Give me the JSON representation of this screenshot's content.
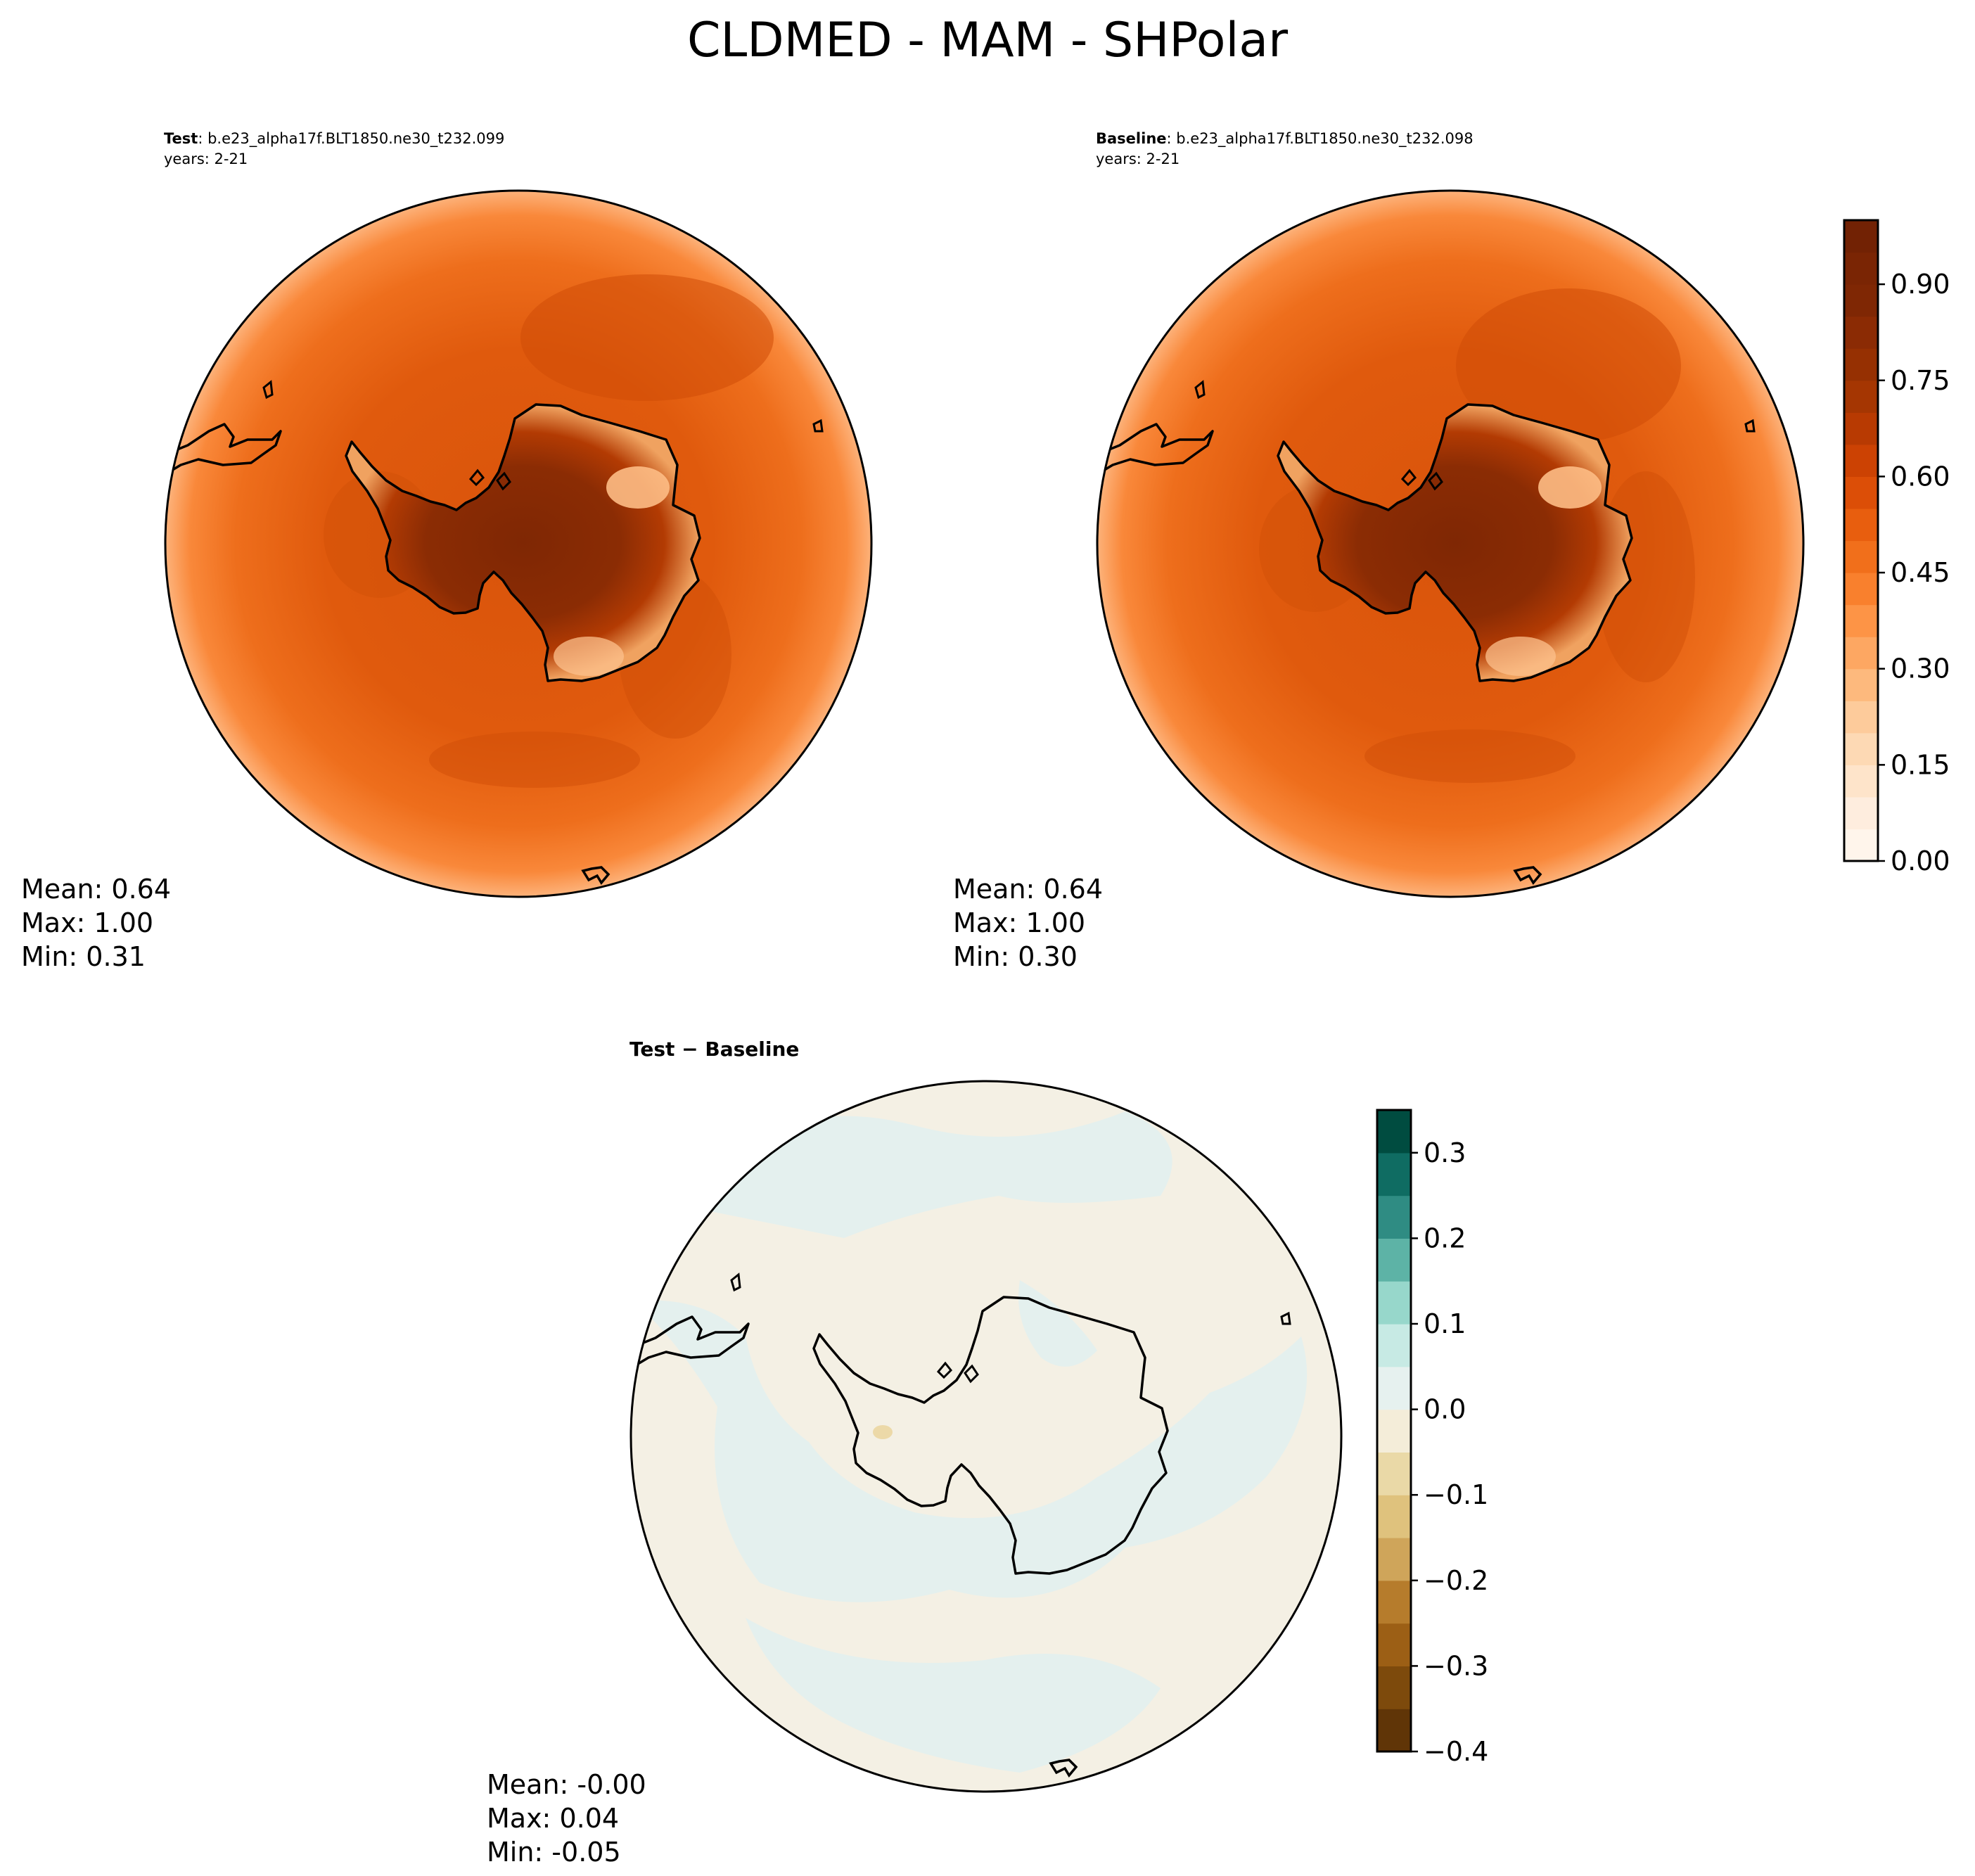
{
  "title": "CLDMED - MAM - SHPolar",
  "chart_data": [
    {
      "type": "heatmap",
      "projection": "south-polar-stereographic",
      "panel": "test",
      "title_bold": "Test",
      "title_rest": ": b.e23_alpha17f.BLT1850.ne30_t232.099",
      "subtitle": "years: 2-21",
      "stats": {
        "mean": "Mean:  0.64",
        "max": "Max:  1.00",
        "min": "Min:  0.31"
      }
    },
    {
      "type": "heatmap",
      "projection": "south-polar-stereographic",
      "panel": "baseline",
      "title_bold": "Baseline",
      "title_rest": ": b.e23_alpha17f.BLT1850.ne30_t232.098",
      "subtitle": "years: 2-21",
      "stats": {
        "mean": "Mean:  0.64",
        "max": "Max:  1.00",
        "min": "Min:  0.30"
      }
    },
    {
      "type": "heatmap",
      "projection": "south-polar-stereographic",
      "panel": "difference",
      "title": "Test − Baseline",
      "stats": {
        "mean": "Mean: -0.00",
        "max": "Max:  0.04",
        "min": "Min: -0.05"
      }
    }
  ],
  "colorbar_main": {
    "colormap": "Oranges",
    "range": [
      0.0,
      1.0
    ],
    "ticks": [
      "0.00",
      "0.15",
      "0.30",
      "0.45",
      "0.60",
      "0.75",
      "0.90"
    ],
    "tick_values": [
      0.0,
      0.15,
      0.3,
      0.45,
      0.6,
      0.75,
      0.9
    ],
    "levels": 20,
    "colors": [
      "#fff5eb",
      "#feedde",
      "#fee4ca",
      "#fdd9b4",
      "#fdcb9b",
      "#fdb97d",
      "#fda762",
      "#fd9446",
      "#f9802d",
      "#f16f1b",
      "#e85e0e",
      "#dc4e07",
      "#cc4203",
      "#b83a02",
      "#a53602",
      "#963002",
      "#8b2b04",
      "#7f2704",
      "#7a2504",
      "#722204"
    ]
  },
  "colorbar_diff": {
    "colormap": "BrBG",
    "range": [
      -0.4,
      0.35
    ],
    "ticks": [
      "−0.4",
      "−0.3",
      "−0.2",
      "−0.1",
      "0.0",
      "0.1",
      "0.2",
      "0.3"
    ],
    "tick_values": [
      -0.4,
      -0.3,
      -0.2,
      -0.1,
      0.0,
      0.1,
      0.2,
      0.3
    ],
    "levels": 15,
    "colors": [
      "#603507",
      "#7d4a0c",
      "#9c5f15",
      "#b67c2c",
      "#cfa55a",
      "#dfc27d",
      "#ead9a7",
      "#f4edd9",
      "#e6f1ef",
      "#c7eae4",
      "#97d7cb",
      "#5db3a6",
      "#2f8c83",
      "#0f6c62",
      "#004c40"
    ]
  },
  "colors": {
    "coastline": "#000000",
    "test_field": "#e8620f",
    "diff_positive": "#e4f0ee",
    "diff_negative": "#f4f0e4"
  }
}
